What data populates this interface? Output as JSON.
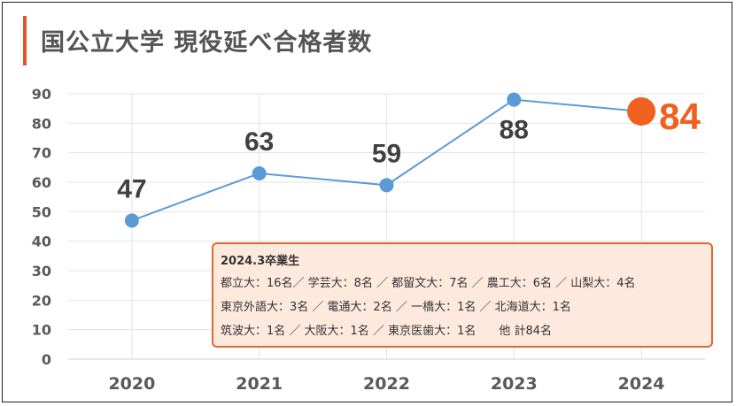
{
  "title": "国公立大学 現役延べ合格者数",
  "colors": {
    "accent": "#e2542a",
    "series": "#5b9bd5",
    "highlight": "#f0601e",
    "note_bg": "#fde9de",
    "note_border": "#e2682e"
  },
  "chart_data": {
    "type": "line",
    "x": [
      "2020",
      "2021",
      "2022",
      "2023",
      "2024"
    ],
    "series": [
      {
        "values": [
          47,
          63,
          59,
          88,
          84
        ]
      }
    ],
    "data_labels": [
      "47",
      "63",
      "59",
      "88",
      "84"
    ],
    "highlight_index": 4,
    "ylim": [
      0,
      90
    ],
    "yticks": [
      0,
      10,
      20,
      30,
      40,
      50,
      60,
      70,
      80,
      90
    ],
    "grid": true,
    "xlabel": "",
    "ylabel": ""
  },
  "note": {
    "header": "2024.3卒業生",
    "lines": [
      "都立大：16名／ 学芸大：8名 ／ 都留文大：7名 ／ 農工大：6名 ／ 山梨大：4名",
      "東京外語大：3名 ／ 電通大：2名 ／ 一橋大：1名 ／ 北海道大：1名",
      "筑波大：1名 ／ 大阪大：1名 ／ 東京医歯大：1名　　他 計84名"
    ]
  }
}
